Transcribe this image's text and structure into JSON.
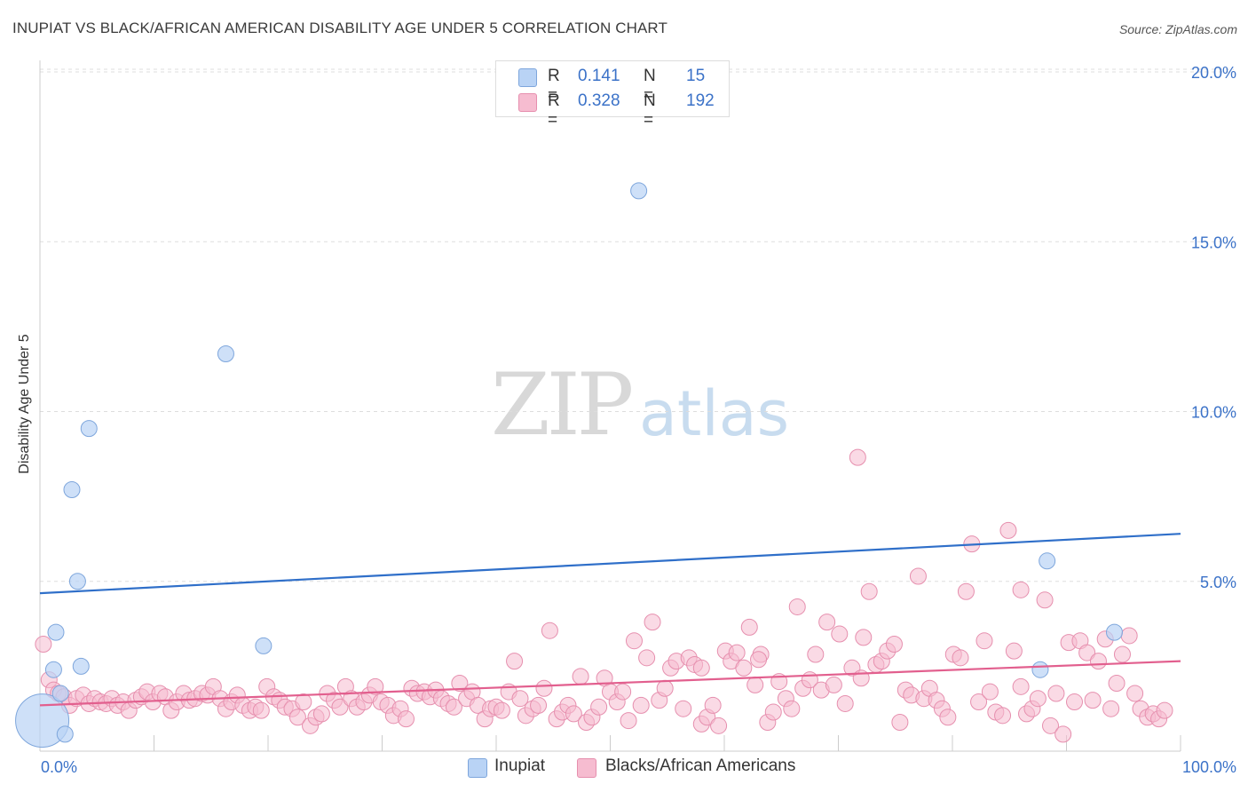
{
  "title": "INUPIAT VS BLACK/AFRICAN AMERICAN DISABILITY AGE UNDER 5 CORRELATION CHART",
  "source": "Source: ZipAtlas.com",
  "watermark": {
    "zip": "ZIP",
    "atlas": "atlas"
  },
  "colors": {
    "inupiat_fill": "#b9d3f5",
    "inupiat_stroke": "#7ea6dc",
    "inupiat_line": "#2f6fc9",
    "black_fill": "#f6bcd0",
    "black_stroke": "#e68fae",
    "black_line": "#e25f8e",
    "accent_text": "#3b72c8",
    "grid": "#dddddd"
  },
  "legend": {
    "rows": [
      {
        "r_label": "R =",
        "r_value": "0.141",
        "n_label": "N =",
        "n_value": "15"
      },
      {
        "r_label": "R =",
        "r_value": "0.328",
        "n_label": "N =",
        "n_value": "192"
      }
    ]
  },
  "bottom_legend": {
    "series1": "Inupiat",
    "series2": "Blacks/African Americans"
  },
  "chart_data": {
    "type": "scatter",
    "title": "INUPIAT VS BLACK/AFRICAN AMERICAN DISABILITY AGE UNDER 5 CORRELATION CHART",
    "xlabel": "",
    "ylabel": "Disability Age Under 5",
    "xlim": [
      0,
      100
    ],
    "ylim": [
      0,
      20.5
    ],
    "x_tick_labels": [
      "0.0%",
      "100.0%"
    ],
    "y_ticks": [
      5,
      10,
      15,
      20
    ],
    "y_tick_labels": [
      "5.0%",
      "10.0%",
      "15.0%",
      "20.0%"
    ],
    "grid": "horizontal dashed",
    "legend_placement": "top-center and bottom",
    "series": [
      {
        "name": "Inupiat",
        "r": 0.141,
        "n": 15,
        "trend": {
          "x": [
            0,
            100
          ],
          "y": [
            4.65,
            6.4
          ]
        },
        "points": [
          [
            0.2,
            0.9,
            30
          ],
          [
            1.2,
            2.4,
            9
          ],
          [
            1.4,
            3.5,
            9
          ],
          [
            1.8,
            1.7,
            9
          ],
          [
            2.2,
            0.5,
            9
          ],
          [
            2.8,
            7.7,
            9
          ],
          [
            3.3,
            5.0,
            9
          ],
          [
            3.6,
            2.5,
            9
          ],
          [
            4.3,
            9.5,
            9
          ],
          [
            16.3,
            11.7,
            9
          ],
          [
            19.6,
            3.1,
            9
          ],
          [
            52.5,
            16.5,
            9
          ],
          [
            88.3,
            5.6,
            9
          ],
          [
            87.7,
            2.4,
            9
          ],
          [
            94.2,
            3.5,
            9
          ]
        ]
      },
      {
        "name": "Blacks/African Americans",
        "r": 0.328,
        "n": 192,
        "trend": {
          "x": [
            0,
            100
          ],
          "y": [
            1.35,
            2.65
          ]
        },
        "points": [
          [
            0.3,
            3.15
          ],
          [
            0.8,
            2.1
          ],
          [
            1.2,
            1.8
          ],
          [
            1.6,
            1.7
          ],
          [
            2.1,
            1.6
          ],
          [
            2.6,
            1.35
          ],
          [
            3.2,
            1.55
          ],
          [
            3.8,
            1.65
          ],
          [
            4.3,
            1.4
          ],
          [
            4.8,
            1.55
          ],
          [
            5.3,
            1.45
          ],
          [
            5.8,
            1.4
          ],
          [
            6.3,
            1.55
          ],
          [
            6.8,
            1.35
          ],
          [
            7.3,
            1.45
          ],
          [
            7.8,
            1.2
          ],
          [
            8.4,
            1.5
          ],
          [
            8.9,
            1.6
          ],
          [
            9.4,
            1.75
          ],
          [
            9.9,
            1.45
          ],
          [
            10.5,
            1.7
          ],
          [
            11.0,
            1.6
          ],
          [
            11.5,
            1.2
          ],
          [
            12.0,
            1.45
          ],
          [
            12.6,
            1.7
          ],
          [
            13.1,
            1.5
          ],
          [
            13.6,
            1.55
          ],
          [
            14.2,
            1.7
          ],
          [
            14.7,
            1.65
          ],
          [
            15.2,
            1.9
          ],
          [
            15.8,
            1.55
          ],
          [
            16.3,
            1.25
          ],
          [
            16.8,
            1.45
          ],
          [
            17.3,
            1.65
          ],
          [
            17.8,
            1.35
          ],
          [
            18.4,
            1.2
          ],
          [
            18.9,
            1.3
          ],
          [
            19.4,
            1.2
          ],
          [
            19.9,
            1.9
          ],
          [
            20.5,
            1.6
          ],
          [
            21.0,
            1.5
          ],
          [
            21.5,
            1.3
          ],
          [
            22.1,
            1.25
          ],
          [
            22.6,
            1.0
          ],
          [
            23.1,
            1.45
          ],
          [
            23.7,
            0.75
          ],
          [
            24.2,
            1.0
          ],
          [
            24.7,
            1.1
          ],
          [
            25.2,
            1.7
          ],
          [
            25.8,
            1.5
          ],
          [
            26.3,
            1.3
          ],
          [
            26.8,
            1.9
          ],
          [
            27.3,
            1.55
          ],
          [
            27.8,
            1.3
          ],
          [
            28.4,
            1.45
          ],
          [
            28.9,
            1.65
          ],
          [
            29.4,
            1.9
          ],
          [
            29.9,
            1.45
          ],
          [
            30.5,
            1.35
          ],
          [
            31.0,
            1.05
          ],
          [
            31.6,
            1.25
          ],
          [
            32.1,
            0.95
          ],
          [
            32.6,
            1.85
          ],
          [
            33.1,
            1.7
          ],
          [
            33.7,
            1.75
          ],
          [
            34.2,
            1.6
          ],
          [
            34.7,
            1.8
          ],
          [
            35.2,
            1.55
          ],
          [
            35.8,
            1.4
          ],
          [
            36.3,
            1.3
          ],
          [
            36.8,
            2.0
          ],
          [
            37.4,
            1.55
          ],
          [
            37.9,
            1.75
          ],
          [
            38.4,
            1.35
          ],
          [
            39.0,
            0.95
          ],
          [
            39.5,
            1.25
          ],
          [
            40.0,
            1.3
          ],
          [
            40.5,
            1.2
          ],
          [
            41.1,
            1.75
          ],
          [
            41.6,
            2.65
          ],
          [
            42.1,
            1.55
          ],
          [
            42.6,
            1.05
          ],
          [
            43.2,
            1.25
          ],
          [
            43.7,
            1.35
          ],
          [
            44.2,
            1.85
          ],
          [
            44.7,
            3.55
          ],
          [
            45.3,
            0.95
          ],
          [
            45.8,
            1.15
          ],
          [
            46.3,
            1.35
          ],
          [
            46.8,
            1.1
          ],
          [
            47.4,
            2.2
          ],
          [
            47.9,
            0.85
          ],
          [
            48.4,
            1.0
          ],
          [
            49.0,
            1.3
          ],
          [
            49.5,
            2.15
          ],
          [
            50.0,
            1.75
          ],
          [
            50.6,
            1.45
          ],
          [
            51.1,
            1.75
          ],
          [
            51.6,
            0.9
          ],
          [
            52.1,
            3.25
          ],
          [
            52.7,
            1.35
          ],
          [
            53.2,
            2.75
          ],
          [
            53.7,
            3.8
          ],
          [
            54.3,
            1.5
          ],
          [
            54.8,
            1.85
          ],
          [
            55.3,
            2.45
          ],
          [
            55.8,
            2.65
          ],
          [
            56.4,
            1.25
          ],
          [
            56.9,
            2.75
          ],
          [
            57.4,
            2.55
          ],
          [
            58.0,
            0.8
          ],
          [
            58.5,
            1.0
          ],
          [
            59.0,
            1.35
          ],
          [
            59.5,
            0.75
          ],
          [
            60.1,
            2.95
          ],
          [
            60.6,
            2.65
          ],
          [
            61.1,
            2.9
          ],
          [
            61.7,
            2.45
          ],
          [
            62.2,
            3.65
          ],
          [
            62.7,
            1.95
          ],
          [
            63.2,
            2.85
          ],
          [
            63.8,
            0.85
          ],
          [
            64.3,
            1.15
          ],
          [
            64.8,
            2.05
          ],
          [
            65.4,
            1.55
          ],
          [
            65.9,
            1.25
          ],
          [
            66.4,
            4.25
          ],
          [
            66.9,
            1.85
          ],
          [
            67.5,
            2.1
          ],
          [
            68.0,
            2.85
          ],
          [
            68.5,
            1.8
          ],
          [
            69.0,
            3.8
          ],
          [
            69.6,
            1.95
          ],
          [
            70.1,
            3.45
          ],
          [
            70.6,
            1.4
          ],
          [
            71.2,
            2.45
          ],
          [
            71.7,
            8.65
          ],
          [
            72.2,
            3.35
          ],
          [
            72.7,
            4.7
          ],
          [
            73.3,
            2.55
          ],
          [
            73.8,
            2.65
          ],
          [
            74.3,
            2.95
          ],
          [
            74.9,
            3.15
          ],
          [
            75.4,
            0.85
          ],
          [
            75.9,
            1.8
          ],
          [
            76.4,
            1.65
          ],
          [
            77.0,
            5.15
          ],
          [
            77.5,
            1.55
          ],
          [
            78.0,
            1.85
          ],
          [
            78.6,
            1.5
          ],
          [
            79.1,
            1.25
          ],
          [
            79.6,
            1.0
          ],
          [
            80.1,
            2.85
          ],
          [
            80.7,
            2.75
          ],
          [
            81.2,
            4.7
          ],
          [
            81.7,
            6.1
          ],
          [
            82.3,
            1.45
          ],
          [
            82.8,
            3.25
          ],
          [
            83.3,
            1.75
          ],
          [
            83.8,
            1.15
          ],
          [
            84.4,
            1.05
          ],
          [
            84.9,
            6.5
          ],
          [
            85.4,
            2.95
          ],
          [
            86.0,
            1.9
          ],
          [
            86.5,
            1.1
          ],
          [
            87.0,
            1.25
          ],
          [
            87.5,
            1.55
          ],
          [
            88.1,
            4.45
          ],
          [
            88.6,
            0.75
          ],
          [
            89.1,
            1.7
          ],
          [
            89.7,
            0.5
          ],
          [
            90.2,
            3.2
          ],
          [
            90.7,
            1.45
          ],
          [
            91.2,
            3.25
          ],
          [
            91.8,
            2.9
          ],
          [
            92.3,
            1.5
          ],
          [
            92.8,
            2.65
          ],
          [
            93.4,
            3.3
          ],
          [
            93.9,
            1.25
          ],
          [
            94.4,
            2.0
          ],
          [
            94.9,
            2.85
          ],
          [
            95.5,
            3.4
          ],
          [
            96.0,
            1.7
          ],
          [
            96.5,
            1.25
          ],
          [
            97.1,
            1.0
          ],
          [
            97.6,
            1.1
          ],
          [
            98.1,
            0.95
          ],
          [
            98.6,
            1.2
          ],
          [
            72.0,
            2.15
          ],
          [
            58.0,
            2.45
          ],
          [
            63.0,
            2.7
          ],
          [
            86.0,
            4.75
          ]
        ]
      }
    ]
  }
}
